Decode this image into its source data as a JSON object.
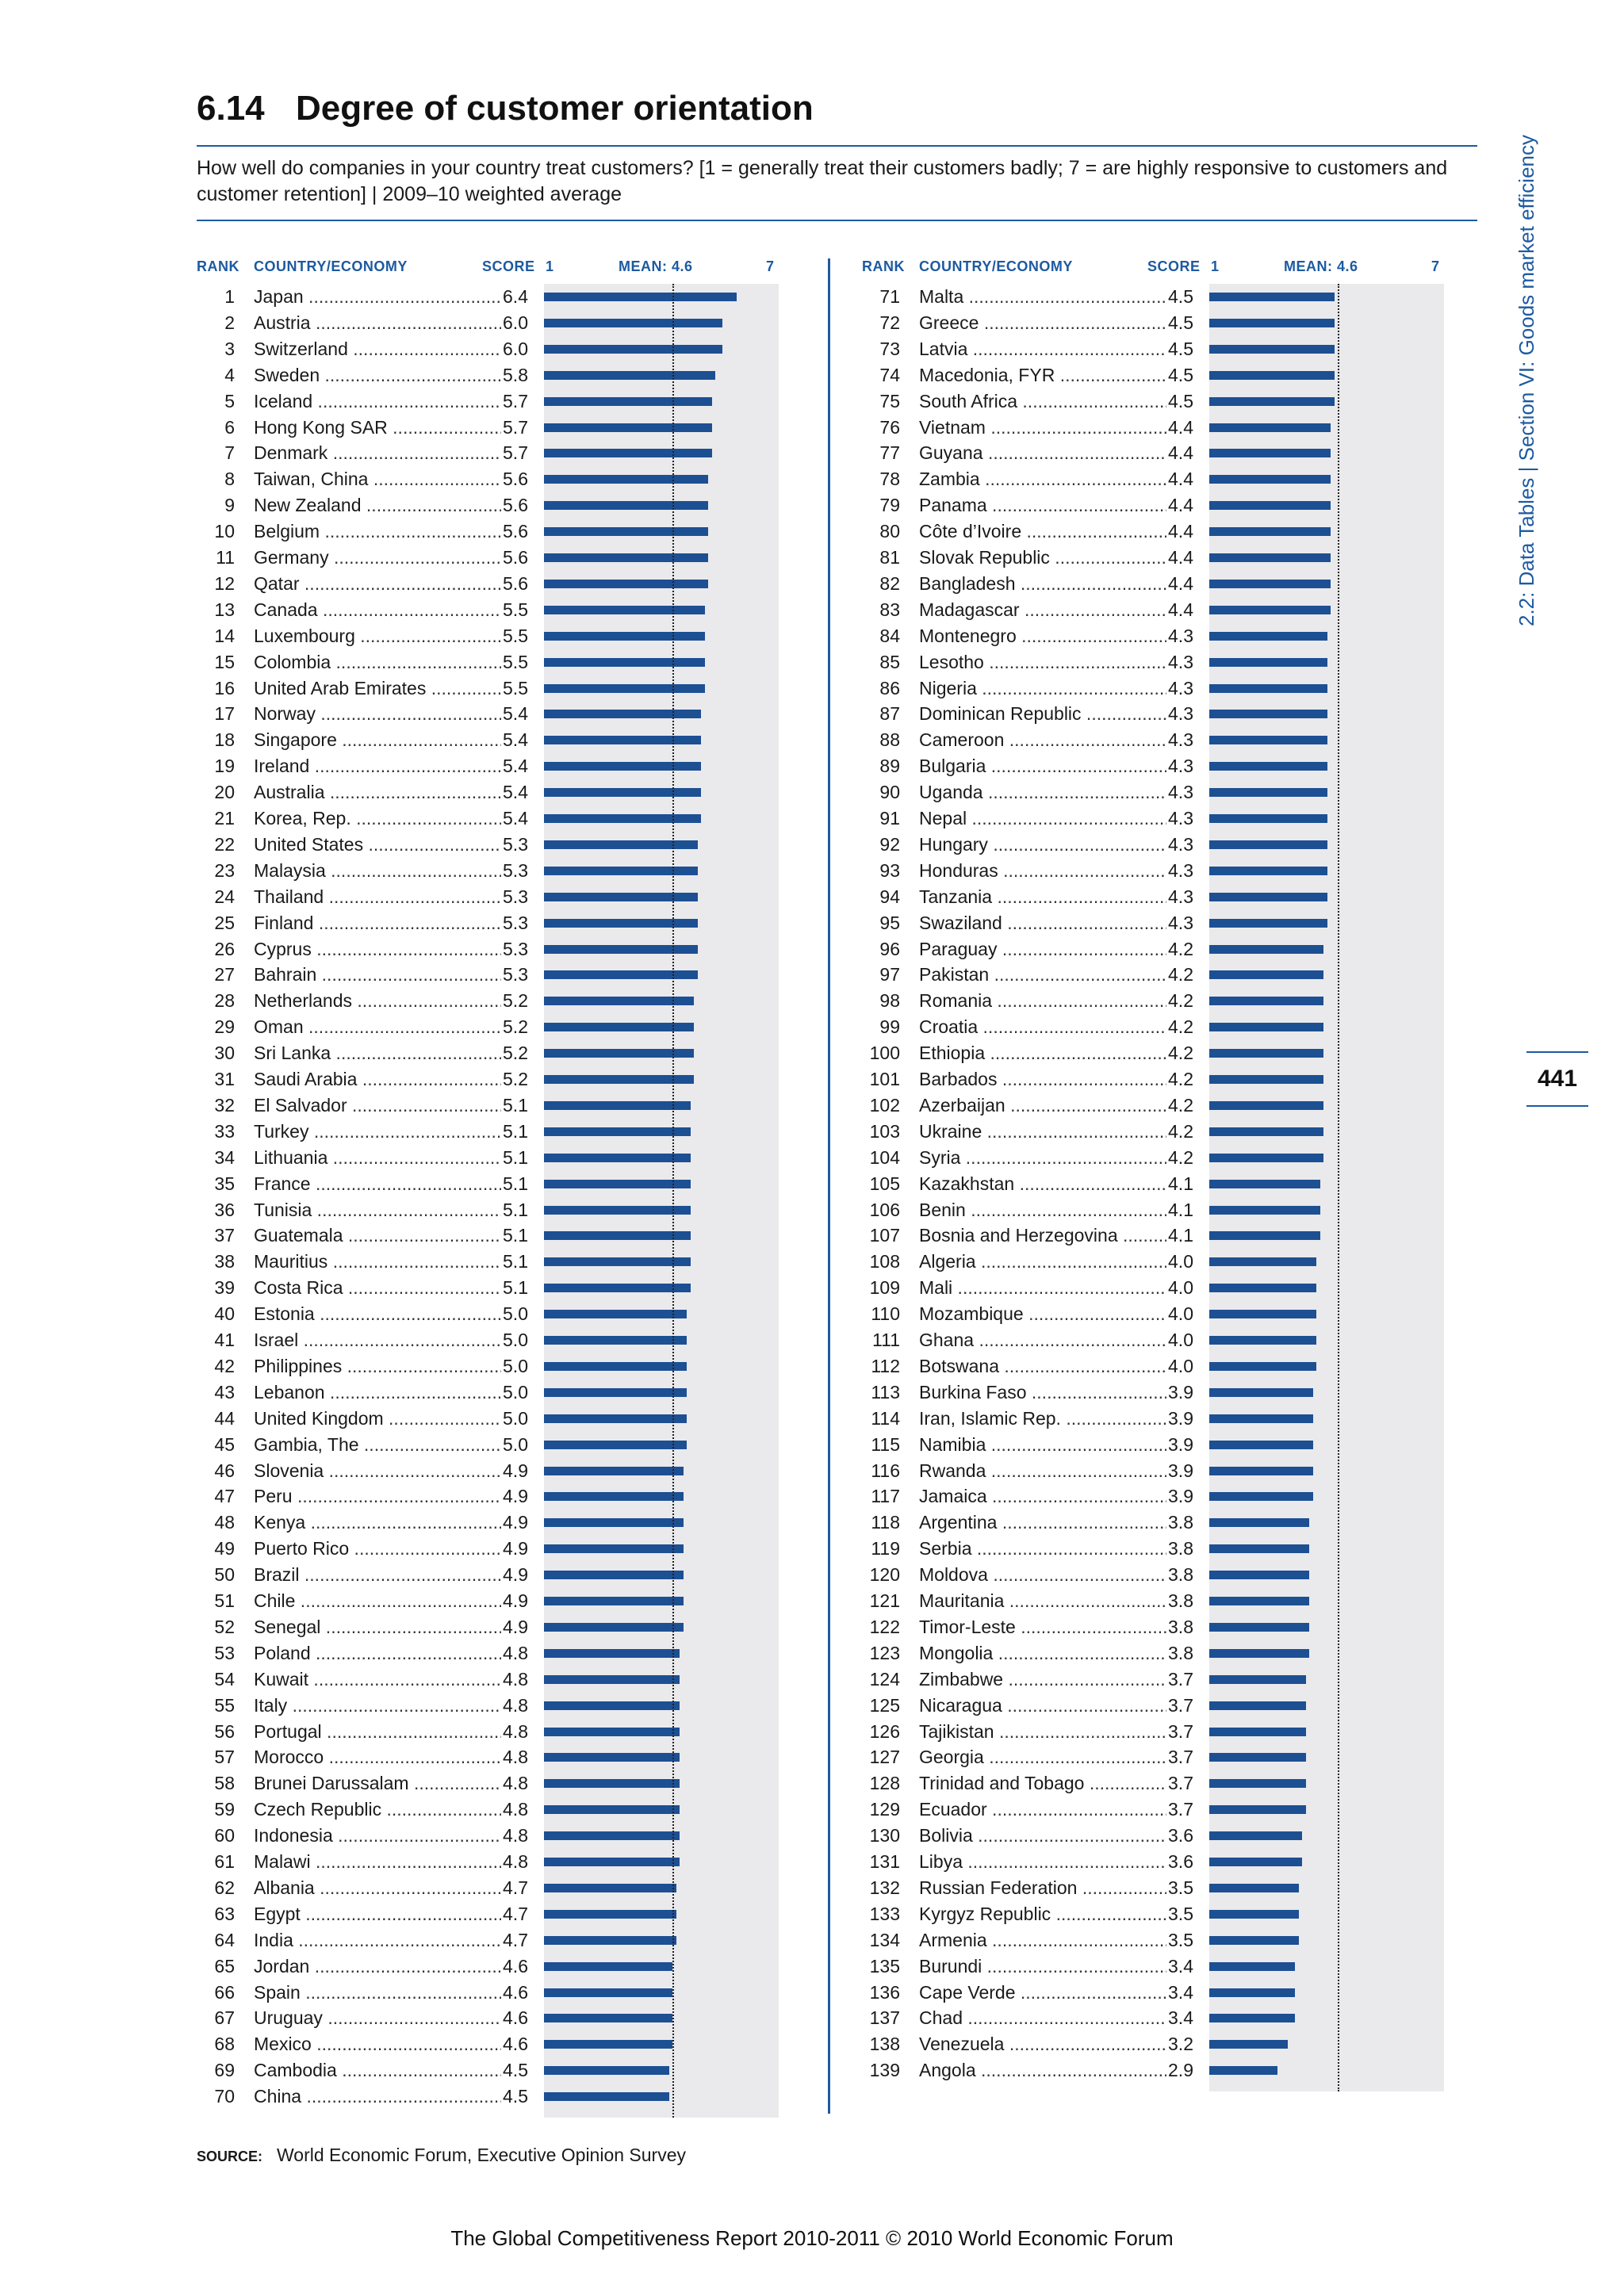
{
  "title": {
    "number": "6.14",
    "text": "Degree of customer orientation"
  },
  "question": "How well do companies in your country treat customers? [1 = generally treat their customers badly; 7 = are highly responsive to customers and customer retention] | 2009–10 weighted average",
  "headers": {
    "rank": "RANK",
    "country": "COUNTRY/ECONOMY",
    "score": "SCORE",
    "scale_min": "1",
    "mean": "MEAN: 4.6",
    "scale_max": "7"
  },
  "side_label": "2.2: Data Tables | Section VI: Goods market efficiency",
  "page_number": "441",
  "source": {
    "label": "SOURCE:",
    "text": "World Economic Forum, Executive Opinion Survey"
  },
  "footer": "The Global Competitiveness Report 2010-2011 © 2010 World Economic Forum",
  "colors": {
    "bar": "#1d4f93",
    "accent": "#1d5aa0",
    "plot_bg": "#eaeaec"
  },
  "chart_data": {
    "type": "bar",
    "orientation": "horizontal",
    "xlim": [
      1,
      7
    ],
    "mean": 4.6,
    "rows": [
      {
        "rank": 1,
        "country": "Japan",
        "score": 6.4
      },
      {
        "rank": 2,
        "country": "Austria",
        "score": 6.0
      },
      {
        "rank": 3,
        "country": "Switzerland",
        "score": 6.0
      },
      {
        "rank": 4,
        "country": "Sweden",
        "score": 5.8
      },
      {
        "rank": 5,
        "country": "Iceland",
        "score": 5.7
      },
      {
        "rank": 6,
        "country": "Hong Kong SAR",
        "score": 5.7
      },
      {
        "rank": 7,
        "country": "Denmark",
        "score": 5.7
      },
      {
        "rank": 8,
        "country": "Taiwan, China",
        "score": 5.6
      },
      {
        "rank": 9,
        "country": "New Zealand",
        "score": 5.6
      },
      {
        "rank": 10,
        "country": "Belgium",
        "score": 5.6
      },
      {
        "rank": 11,
        "country": "Germany",
        "score": 5.6
      },
      {
        "rank": 12,
        "country": "Qatar",
        "score": 5.6
      },
      {
        "rank": 13,
        "country": "Canada",
        "score": 5.5
      },
      {
        "rank": 14,
        "country": "Luxembourg",
        "score": 5.5
      },
      {
        "rank": 15,
        "country": "Colombia",
        "score": 5.5
      },
      {
        "rank": 16,
        "country": "United Arab Emirates",
        "score": 5.5
      },
      {
        "rank": 17,
        "country": "Norway",
        "score": 5.4
      },
      {
        "rank": 18,
        "country": "Singapore",
        "score": 5.4
      },
      {
        "rank": 19,
        "country": "Ireland",
        "score": 5.4
      },
      {
        "rank": 20,
        "country": "Australia",
        "score": 5.4
      },
      {
        "rank": 21,
        "country": "Korea, Rep.",
        "score": 5.4
      },
      {
        "rank": 22,
        "country": "United States",
        "score": 5.3
      },
      {
        "rank": 23,
        "country": "Malaysia",
        "score": 5.3
      },
      {
        "rank": 24,
        "country": "Thailand",
        "score": 5.3
      },
      {
        "rank": 25,
        "country": "Finland",
        "score": 5.3
      },
      {
        "rank": 26,
        "country": "Cyprus",
        "score": 5.3
      },
      {
        "rank": 27,
        "country": "Bahrain",
        "score": 5.3
      },
      {
        "rank": 28,
        "country": "Netherlands",
        "score": 5.2
      },
      {
        "rank": 29,
        "country": "Oman",
        "score": 5.2
      },
      {
        "rank": 30,
        "country": "Sri Lanka",
        "score": 5.2
      },
      {
        "rank": 31,
        "country": "Saudi Arabia",
        "score": 5.2
      },
      {
        "rank": 32,
        "country": "El Salvador",
        "score": 5.1
      },
      {
        "rank": 33,
        "country": "Turkey",
        "score": 5.1
      },
      {
        "rank": 34,
        "country": "Lithuania",
        "score": 5.1
      },
      {
        "rank": 35,
        "country": "France",
        "score": 5.1
      },
      {
        "rank": 36,
        "country": "Tunisia",
        "score": 5.1
      },
      {
        "rank": 37,
        "country": "Guatemala",
        "score": 5.1
      },
      {
        "rank": 38,
        "country": "Mauritius",
        "score": 5.1
      },
      {
        "rank": 39,
        "country": "Costa Rica",
        "score": 5.1
      },
      {
        "rank": 40,
        "country": "Estonia",
        "score": 5.0
      },
      {
        "rank": 41,
        "country": "Israel",
        "score": 5.0
      },
      {
        "rank": 42,
        "country": "Philippines",
        "score": 5.0
      },
      {
        "rank": 43,
        "country": "Lebanon",
        "score": 5.0
      },
      {
        "rank": 44,
        "country": "United Kingdom",
        "score": 5.0
      },
      {
        "rank": 45,
        "country": "Gambia, The",
        "score": 5.0
      },
      {
        "rank": 46,
        "country": "Slovenia",
        "score": 4.9
      },
      {
        "rank": 47,
        "country": "Peru",
        "score": 4.9
      },
      {
        "rank": 48,
        "country": "Kenya",
        "score": 4.9
      },
      {
        "rank": 49,
        "country": "Puerto Rico",
        "score": 4.9
      },
      {
        "rank": 50,
        "country": "Brazil",
        "score": 4.9
      },
      {
        "rank": 51,
        "country": "Chile",
        "score": 4.9
      },
      {
        "rank": 52,
        "country": "Senegal",
        "score": 4.9
      },
      {
        "rank": 53,
        "country": "Poland",
        "score": 4.8
      },
      {
        "rank": 54,
        "country": "Kuwait",
        "score": 4.8
      },
      {
        "rank": 55,
        "country": "Italy",
        "score": 4.8
      },
      {
        "rank": 56,
        "country": "Portugal",
        "score": 4.8
      },
      {
        "rank": 57,
        "country": "Morocco",
        "score": 4.8
      },
      {
        "rank": 58,
        "country": "Brunei Darussalam",
        "score": 4.8
      },
      {
        "rank": 59,
        "country": "Czech Republic",
        "score": 4.8
      },
      {
        "rank": 60,
        "country": "Indonesia",
        "score": 4.8
      },
      {
        "rank": 61,
        "country": "Malawi",
        "score": 4.8
      },
      {
        "rank": 62,
        "country": "Albania",
        "score": 4.7
      },
      {
        "rank": 63,
        "country": "Egypt",
        "score": 4.7
      },
      {
        "rank": 64,
        "country": "India",
        "score": 4.7
      },
      {
        "rank": 65,
        "country": "Jordan",
        "score": 4.6
      },
      {
        "rank": 66,
        "country": "Spain",
        "score": 4.6
      },
      {
        "rank": 67,
        "country": "Uruguay",
        "score": 4.6
      },
      {
        "rank": 68,
        "country": "Mexico",
        "score": 4.6
      },
      {
        "rank": 69,
        "country": "Cambodia",
        "score": 4.5
      },
      {
        "rank": 70,
        "country": "China",
        "score": 4.5
      },
      {
        "rank": 71,
        "country": "Malta",
        "score": 4.5
      },
      {
        "rank": 72,
        "country": "Greece",
        "score": 4.5
      },
      {
        "rank": 73,
        "country": "Latvia",
        "score": 4.5
      },
      {
        "rank": 74,
        "country": "Macedonia, FYR",
        "score": 4.5
      },
      {
        "rank": 75,
        "country": "South Africa",
        "score": 4.5
      },
      {
        "rank": 76,
        "country": "Vietnam",
        "score": 4.4
      },
      {
        "rank": 77,
        "country": "Guyana",
        "score": 4.4
      },
      {
        "rank": 78,
        "country": "Zambia",
        "score": 4.4
      },
      {
        "rank": 79,
        "country": "Panama",
        "score": 4.4
      },
      {
        "rank": 80,
        "country": "Côte d’Ivoire",
        "score": 4.4
      },
      {
        "rank": 81,
        "country": "Slovak Republic",
        "score": 4.4
      },
      {
        "rank": 82,
        "country": "Bangladesh",
        "score": 4.4
      },
      {
        "rank": 83,
        "country": "Madagascar",
        "score": 4.4
      },
      {
        "rank": 84,
        "country": "Montenegro",
        "score": 4.3
      },
      {
        "rank": 85,
        "country": "Lesotho",
        "score": 4.3
      },
      {
        "rank": 86,
        "country": "Nigeria",
        "score": 4.3
      },
      {
        "rank": 87,
        "country": "Dominican Republic",
        "score": 4.3
      },
      {
        "rank": 88,
        "country": "Cameroon",
        "score": 4.3
      },
      {
        "rank": 89,
        "country": "Bulgaria",
        "score": 4.3
      },
      {
        "rank": 90,
        "country": "Uganda",
        "score": 4.3
      },
      {
        "rank": 91,
        "country": "Nepal",
        "score": 4.3
      },
      {
        "rank": 92,
        "country": "Hungary",
        "score": 4.3
      },
      {
        "rank": 93,
        "country": "Honduras",
        "score": 4.3
      },
      {
        "rank": 94,
        "country": "Tanzania",
        "score": 4.3
      },
      {
        "rank": 95,
        "country": "Swaziland",
        "score": 4.3
      },
      {
        "rank": 96,
        "country": "Paraguay",
        "score": 4.2
      },
      {
        "rank": 97,
        "country": "Pakistan",
        "score": 4.2
      },
      {
        "rank": 98,
        "country": "Romania",
        "score": 4.2
      },
      {
        "rank": 99,
        "country": "Croatia",
        "score": 4.2
      },
      {
        "rank": 100,
        "country": "Ethiopia",
        "score": 4.2
      },
      {
        "rank": 101,
        "country": "Barbados",
        "score": 4.2
      },
      {
        "rank": 102,
        "country": "Azerbaijan",
        "score": 4.2
      },
      {
        "rank": 103,
        "country": "Ukraine",
        "score": 4.2
      },
      {
        "rank": 104,
        "country": "Syria",
        "score": 4.2
      },
      {
        "rank": 105,
        "country": "Kazakhstan",
        "score": 4.1
      },
      {
        "rank": 106,
        "country": "Benin",
        "score": 4.1
      },
      {
        "rank": 107,
        "country": "Bosnia and Herzegovina",
        "score": 4.1
      },
      {
        "rank": 108,
        "country": "Algeria",
        "score": 4.0
      },
      {
        "rank": 109,
        "country": "Mali",
        "score": 4.0
      },
      {
        "rank": 110,
        "country": "Mozambique",
        "score": 4.0
      },
      {
        "rank": 111,
        "country": "Ghana",
        "score": 4.0
      },
      {
        "rank": 112,
        "country": "Botswana",
        "score": 4.0
      },
      {
        "rank": 113,
        "country": "Burkina Faso",
        "score": 3.9
      },
      {
        "rank": 114,
        "country": "Iran, Islamic Rep.",
        "score": 3.9
      },
      {
        "rank": 115,
        "country": "Namibia",
        "score": 3.9
      },
      {
        "rank": 116,
        "country": "Rwanda",
        "score": 3.9
      },
      {
        "rank": 117,
        "country": "Jamaica",
        "score": 3.9
      },
      {
        "rank": 118,
        "country": "Argentina",
        "score": 3.8
      },
      {
        "rank": 119,
        "country": "Serbia",
        "score": 3.8
      },
      {
        "rank": 120,
        "country": "Moldova",
        "score": 3.8
      },
      {
        "rank": 121,
        "country": "Mauritania",
        "score": 3.8
      },
      {
        "rank": 122,
        "country": "Timor-Leste",
        "score": 3.8
      },
      {
        "rank": 123,
        "country": "Mongolia",
        "score": 3.8
      },
      {
        "rank": 124,
        "country": "Zimbabwe",
        "score": 3.7
      },
      {
        "rank": 125,
        "country": "Nicaragua",
        "score": 3.7
      },
      {
        "rank": 126,
        "country": "Tajikistan",
        "score": 3.7
      },
      {
        "rank": 127,
        "country": "Georgia",
        "score": 3.7
      },
      {
        "rank": 128,
        "country": "Trinidad and Tobago",
        "score": 3.7
      },
      {
        "rank": 129,
        "country": "Ecuador",
        "score": 3.7
      },
      {
        "rank": 130,
        "country": "Bolivia",
        "score": 3.6
      },
      {
        "rank": 131,
        "country": "Libya",
        "score": 3.6
      },
      {
        "rank": 132,
        "country": "Russian Federation",
        "score": 3.5
      },
      {
        "rank": 133,
        "country": "Kyrgyz Republic",
        "score": 3.5
      },
      {
        "rank": 134,
        "country": "Armenia",
        "score": 3.5
      },
      {
        "rank": 135,
        "country": "Burundi",
        "score": 3.4
      },
      {
        "rank": 136,
        "country": "Cape Verde",
        "score": 3.4
      },
      {
        "rank": 137,
        "country": "Chad",
        "score": 3.4
      },
      {
        "rank": 138,
        "country": "Venezuela",
        "score": 3.2
      },
      {
        "rank": 139,
        "country": "Angola",
        "score": 2.9
      }
    ]
  }
}
